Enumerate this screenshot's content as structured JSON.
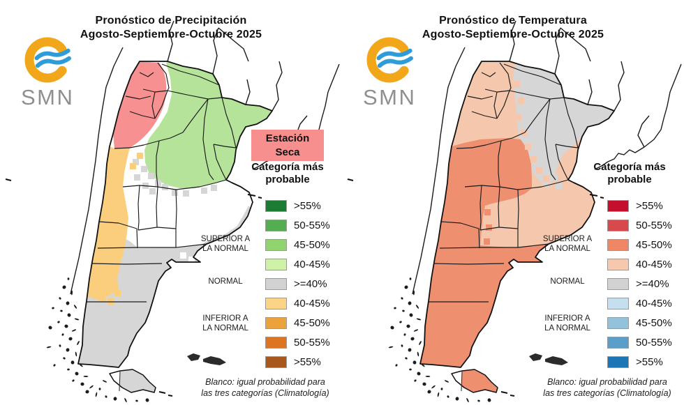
{
  "logo": {
    "text": "SMN",
    "ring_color": "#F2A71B",
    "wave_color": "#2D9CD8",
    "text_color": "#8F8F8F"
  },
  "panels": [
    {
      "id": "precipitation",
      "title_line1": "Pronóstico de Precipitación",
      "title_line2": "Agosto-Septiembre-Octubre 2025",
      "badge": {
        "line1": "Estación",
        "line2": "Seca",
        "bg_color": "#F78F8F"
      },
      "legend": {
        "heading_line1": "Categoría más",
        "heading_line2": "probable",
        "group_labels": [
          [
            "SUPERIOR A",
            "LA NORMAL"
          ],
          [
            "NORMAL",
            ""
          ],
          [
            "INFERIOR A",
            "LA NORMAL"
          ]
        ],
        "rows": [
          {
            "label": ">55%",
            "color": "#1D7C34"
          },
          {
            "label": "50-55%",
            "color": "#55AD52"
          },
          {
            "label": "45-50%",
            "color": "#8FD46F"
          },
          {
            "label": "40-45%",
            "color": "#CDF2A8"
          },
          {
            "label": ">=40%",
            "color": "#D2D2D2"
          },
          {
            "label": "40-45%",
            "color": "#FCD488"
          },
          {
            "label": "45-50%",
            "color": "#EBA23D"
          },
          {
            "label": "50-55%",
            "color": "#DC7420"
          },
          {
            "label": ">55%",
            "color": "#A8571D"
          }
        ],
        "footer_line1": "Blanco: igual probabilidad para",
        "footer_line2": "las tres categorías (Climatología)"
      },
      "map_regions": {
        "above_normal": "#B6E39A",
        "dry_season": "#F79090",
        "below_normal": "#FBCE7D",
        "normal": "#D6D6D6",
        "equal_probability": "#FFFFFF"
      }
    },
    {
      "id": "temperature",
      "title_line1": "Pronóstico de Temperatura",
      "title_line2": "Agosto-Septiembre-Octubre 2025",
      "badge": null,
      "legend": {
        "heading_line1": "Categoría más",
        "heading_line2": "probable",
        "group_labels": [
          [
            "SUPERIOR A",
            "LA NORMAL"
          ],
          [
            "NORMAL",
            ""
          ],
          [
            "INFERIOR A",
            "LA NORMAL"
          ]
        ],
        "rows": [
          {
            "label": ">55%",
            "color": "#C40F2E"
          },
          {
            "label": "50-55%",
            "color": "#D8494D"
          },
          {
            "label": "45-50%",
            "color": "#EF8666"
          },
          {
            "label": "40-45%",
            "color": "#F6C9AE"
          },
          {
            "label": ">=40%",
            "color": "#D2D2D2"
          },
          {
            "label": "40-45%",
            "color": "#C6DFEE"
          },
          {
            "label": "45-50%",
            "color": "#92C2DC"
          },
          {
            "label": "50-55%",
            "color": "#5B9EC9"
          },
          {
            "label": ">55%",
            "color": "#1C75B4"
          }
        ],
        "footer_line1": "Blanco: igual probabilidad para",
        "footer_line2": "las tres categorías (Climatología)"
      },
      "map_regions": {
        "above_light": "#F5C8AD",
        "above_medium": "#EE8F70",
        "normal": "#D6D6D6"
      }
    }
  ]
}
